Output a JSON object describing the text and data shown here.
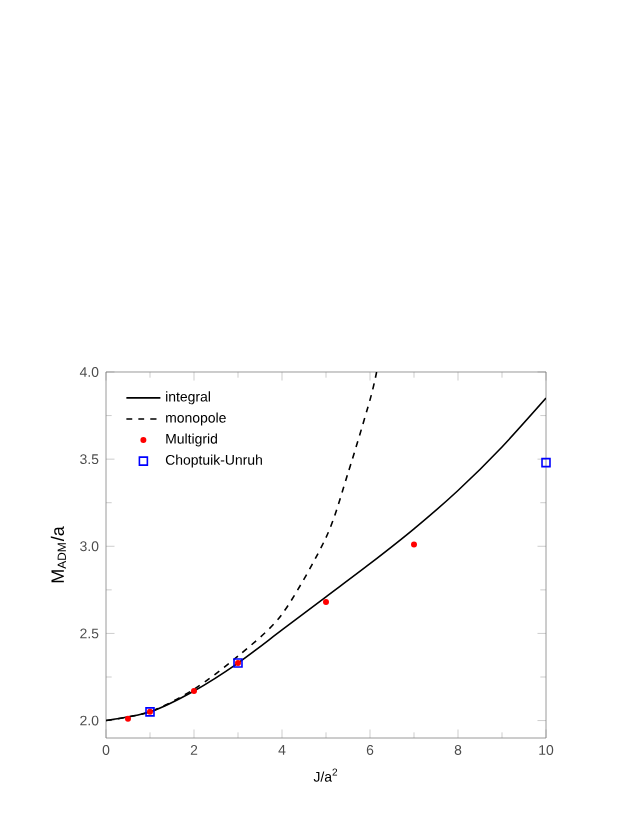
{
  "chart_data": {
    "type": "line",
    "xlabel": "J/a$^{2}$",
    "ylabel": "M$_{ADM}$/a",
    "xlim": [
      0,
      10
    ],
    "ylim": [
      1.9,
      4.0
    ],
    "xticks": [
      0,
      2,
      4,
      6,
      8,
      10
    ],
    "yticks": [
      {
        "value": 2.0,
        "label": "2.0"
      },
      {
        "value": 2.5,
        "label": "2.5"
      },
      {
        "value": 3.0,
        "label": "3.0"
      },
      {
        "value": 3.5,
        "label": "3.5"
      },
      {
        "value": 4.0,
        "label": "4.0"
      }
    ],
    "grid": false,
    "legend": "top left",
    "series": [
      {
        "name": "integral",
        "color": "#000000",
        "line_style": "solid",
        "marker": "none",
        "x": [
          0,
          1,
          2,
          3,
          4,
          5,
          6,
          7,
          8,
          9,
          10
        ],
        "values": [
          2.0,
          2.05,
          2.17,
          2.33,
          2.52,
          2.71,
          2.9,
          3.1,
          3.32,
          3.57,
          3.85
        ]
      },
      {
        "name": "monopole",
        "color": "#000000",
        "line_style": "dashed",
        "marker": "none",
        "x": [
          0,
          1,
          2,
          3,
          4,
          5,
          5.5,
          6,
          6.15
        ],
        "values": [
          2.0,
          2.05,
          2.18,
          2.37,
          2.61,
          3.05,
          3.42,
          3.84,
          4.0
        ]
      },
      {
        "name": "Multigrid",
        "type": "scatter",
        "color": "#ff0000",
        "marker": "circle",
        "x": [
          0.5,
          1,
          2,
          3,
          5,
          7
        ],
        "values": [
          2.01,
          2.05,
          2.17,
          2.33,
          2.68,
          3.01
        ]
      },
      {
        "name": "Choptuik-Unruh",
        "type": "scatter",
        "color": "#0000ff",
        "marker": "square",
        "x": [
          1,
          3,
          10
        ],
        "values": [
          2.05,
          2.33,
          3.48
        ]
      }
    ]
  }
}
